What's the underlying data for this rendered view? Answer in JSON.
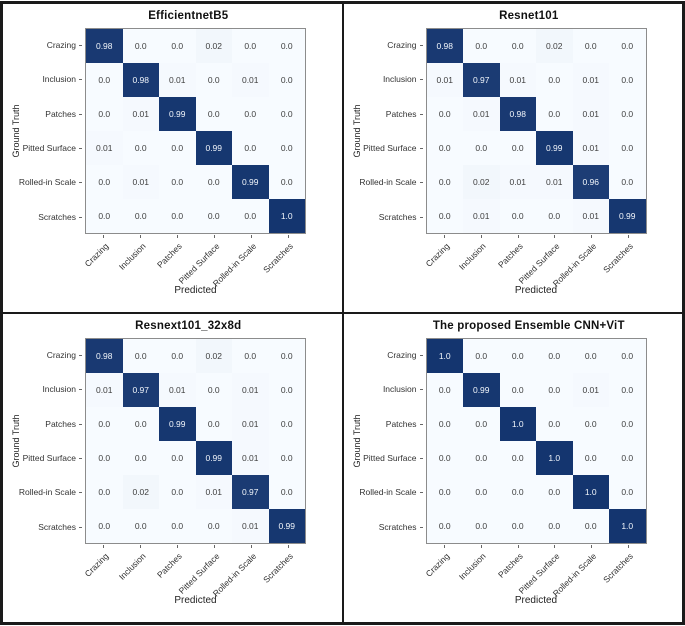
{
  "colors": {
    "cell_low": "#f7fbff",
    "cell_high": "#14356f",
    "value_text_dark": "#404040",
    "value_text_light": "#f2f6fb",
    "matrix_frame": "#8c8c8c",
    "panel_frame": "#1a1a1a"
  },
  "chart_data": [
    {
      "type": "heatmap",
      "title": "EfficientnetB5",
      "xlabel": "Predicted",
      "ylabel": "Ground Truth",
      "categories": [
        "Crazing",
        "Inclusion",
        "Patches",
        "Pitted Surface",
        "Rolled-in Scale",
        "Scratches"
      ],
      "matrix": [
        [
          "0.98",
          "0.0",
          "0.0",
          "0.02",
          "0.0",
          "0.0"
        ],
        [
          "0.0",
          "0.98",
          "0.01",
          "0.0",
          "0.01",
          "0.0"
        ],
        [
          "0.0",
          "0.01",
          "0.99",
          "0.0",
          "0.0",
          "0.0"
        ],
        [
          "0.01",
          "0.0",
          "0.0",
          "0.99",
          "0.0",
          "0.0"
        ],
        [
          "0.0",
          "0.01",
          "0.0",
          "0.0",
          "0.99",
          "0.0"
        ],
        [
          "0.0",
          "0.0",
          "0.0",
          "0.0",
          "0.0",
          "1.0"
        ]
      ]
    },
    {
      "type": "heatmap",
      "title": "Resnet101",
      "xlabel": "Predicted",
      "ylabel": "Ground Truth",
      "categories": [
        "Crazing",
        "Inclusion",
        "Patches",
        "Pitted Surface",
        "Rolled-in Scale",
        "Scratches"
      ],
      "matrix": [
        [
          "0.98",
          "0.0",
          "0.0",
          "0.02",
          "0.0",
          "0.0"
        ],
        [
          "0.01",
          "0.97",
          "0.01",
          "0.0",
          "0.01",
          "0.0"
        ],
        [
          "0.0",
          "0.01",
          "0.98",
          "0.0",
          "0.01",
          "0.0"
        ],
        [
          "0.0",
          "0.0",
          "0.0",
          "0.99",
          "0.01",
          "0.0"
        ],
        [
          "0.0",
          "0.02",
          "0.01",
          "0.01",
          "0.96",
          "0.0"
        ],
        [
          "0.0",
          "0.01",
          "0.0",
          "0.0",
          "0.01",
          "0.99"
        ]
      ]
    },
    {
      "type": "heatmap",
      "title": "Resnext101_32x8d",
      "xlabel": "Predicted",
      "ylabel": "Ground Truth",
      "categories": [
        "Crazing",
        "Inclusion",
        "Patches",
        "Pitted Surface",
        "Rolled-in Scale",
        "Scratches"
      ],
      "matrix": [
        [
          "0.98",
          "0.0",
          "0.0",
          "0.02",
          "0.0",
          "0.0"
        ],
        [
          "0.01",
          "0.97",
          "0.01",
          "0.0",
          "0.01",
          "0.0"
        ],
        [
          "0.0",
          "0.0",
          "0.99",
          "0.0",
          "0.01",
          "0.0"
        ],
        [
          "0.0",
          "0.0",
          "0.0",
          "0.99",
          "0.01",
          "0.0"
        ],
        [
          "0.0",
          "0.02",
          "0.0",
          "0.01",
          "0.97",
          "0.0"
        ],
        [
          "0.0",
          "0.0",
          "0.0",
          "0.0",
          "0.01",
          "0.99"
        ]
      ]
    },
    {
      "type": "heatmap",
      "title": "The proposed Ensemble CNN+ViT",
      "xlabel": "Predicted",
      "ylabel": "Ground Truth",
      "categories": [
        "Crazing",
        "Inclusion",
        "Patches",
        "Pitted Surface",
        "Rolled-in Scale",
        "Scratches"
      ],
      "matrix": [
        [
          "1.0",
          "0.0",
          "0.0",
          "0.0",
          "0.0",
          "0.0"
        ],
        [
          "0.0",
          "0.99",
          "0.0",
          "0.0",
          "0.01",
          "0.0"
        ],
        [
          "0.0",
          "0.0",
          "1.0",
          "0.0",
          "0.0",
          "0.0"
        ],
        [
          "0.0",
          "0.0",
          "0.0",
          "1.0",
          "0.0",
          "0.0"
        ],
        [
          "0.0",
          "0.0",
          "0.0",
          "0.0",
          "1.0",
          "0.0"
        ],
        [
          "0.0",
          "0.0",
          "0.0",
          "0.0",
          "0.0",
          "1.0"
        ]
      ]
    }
  ]
}
